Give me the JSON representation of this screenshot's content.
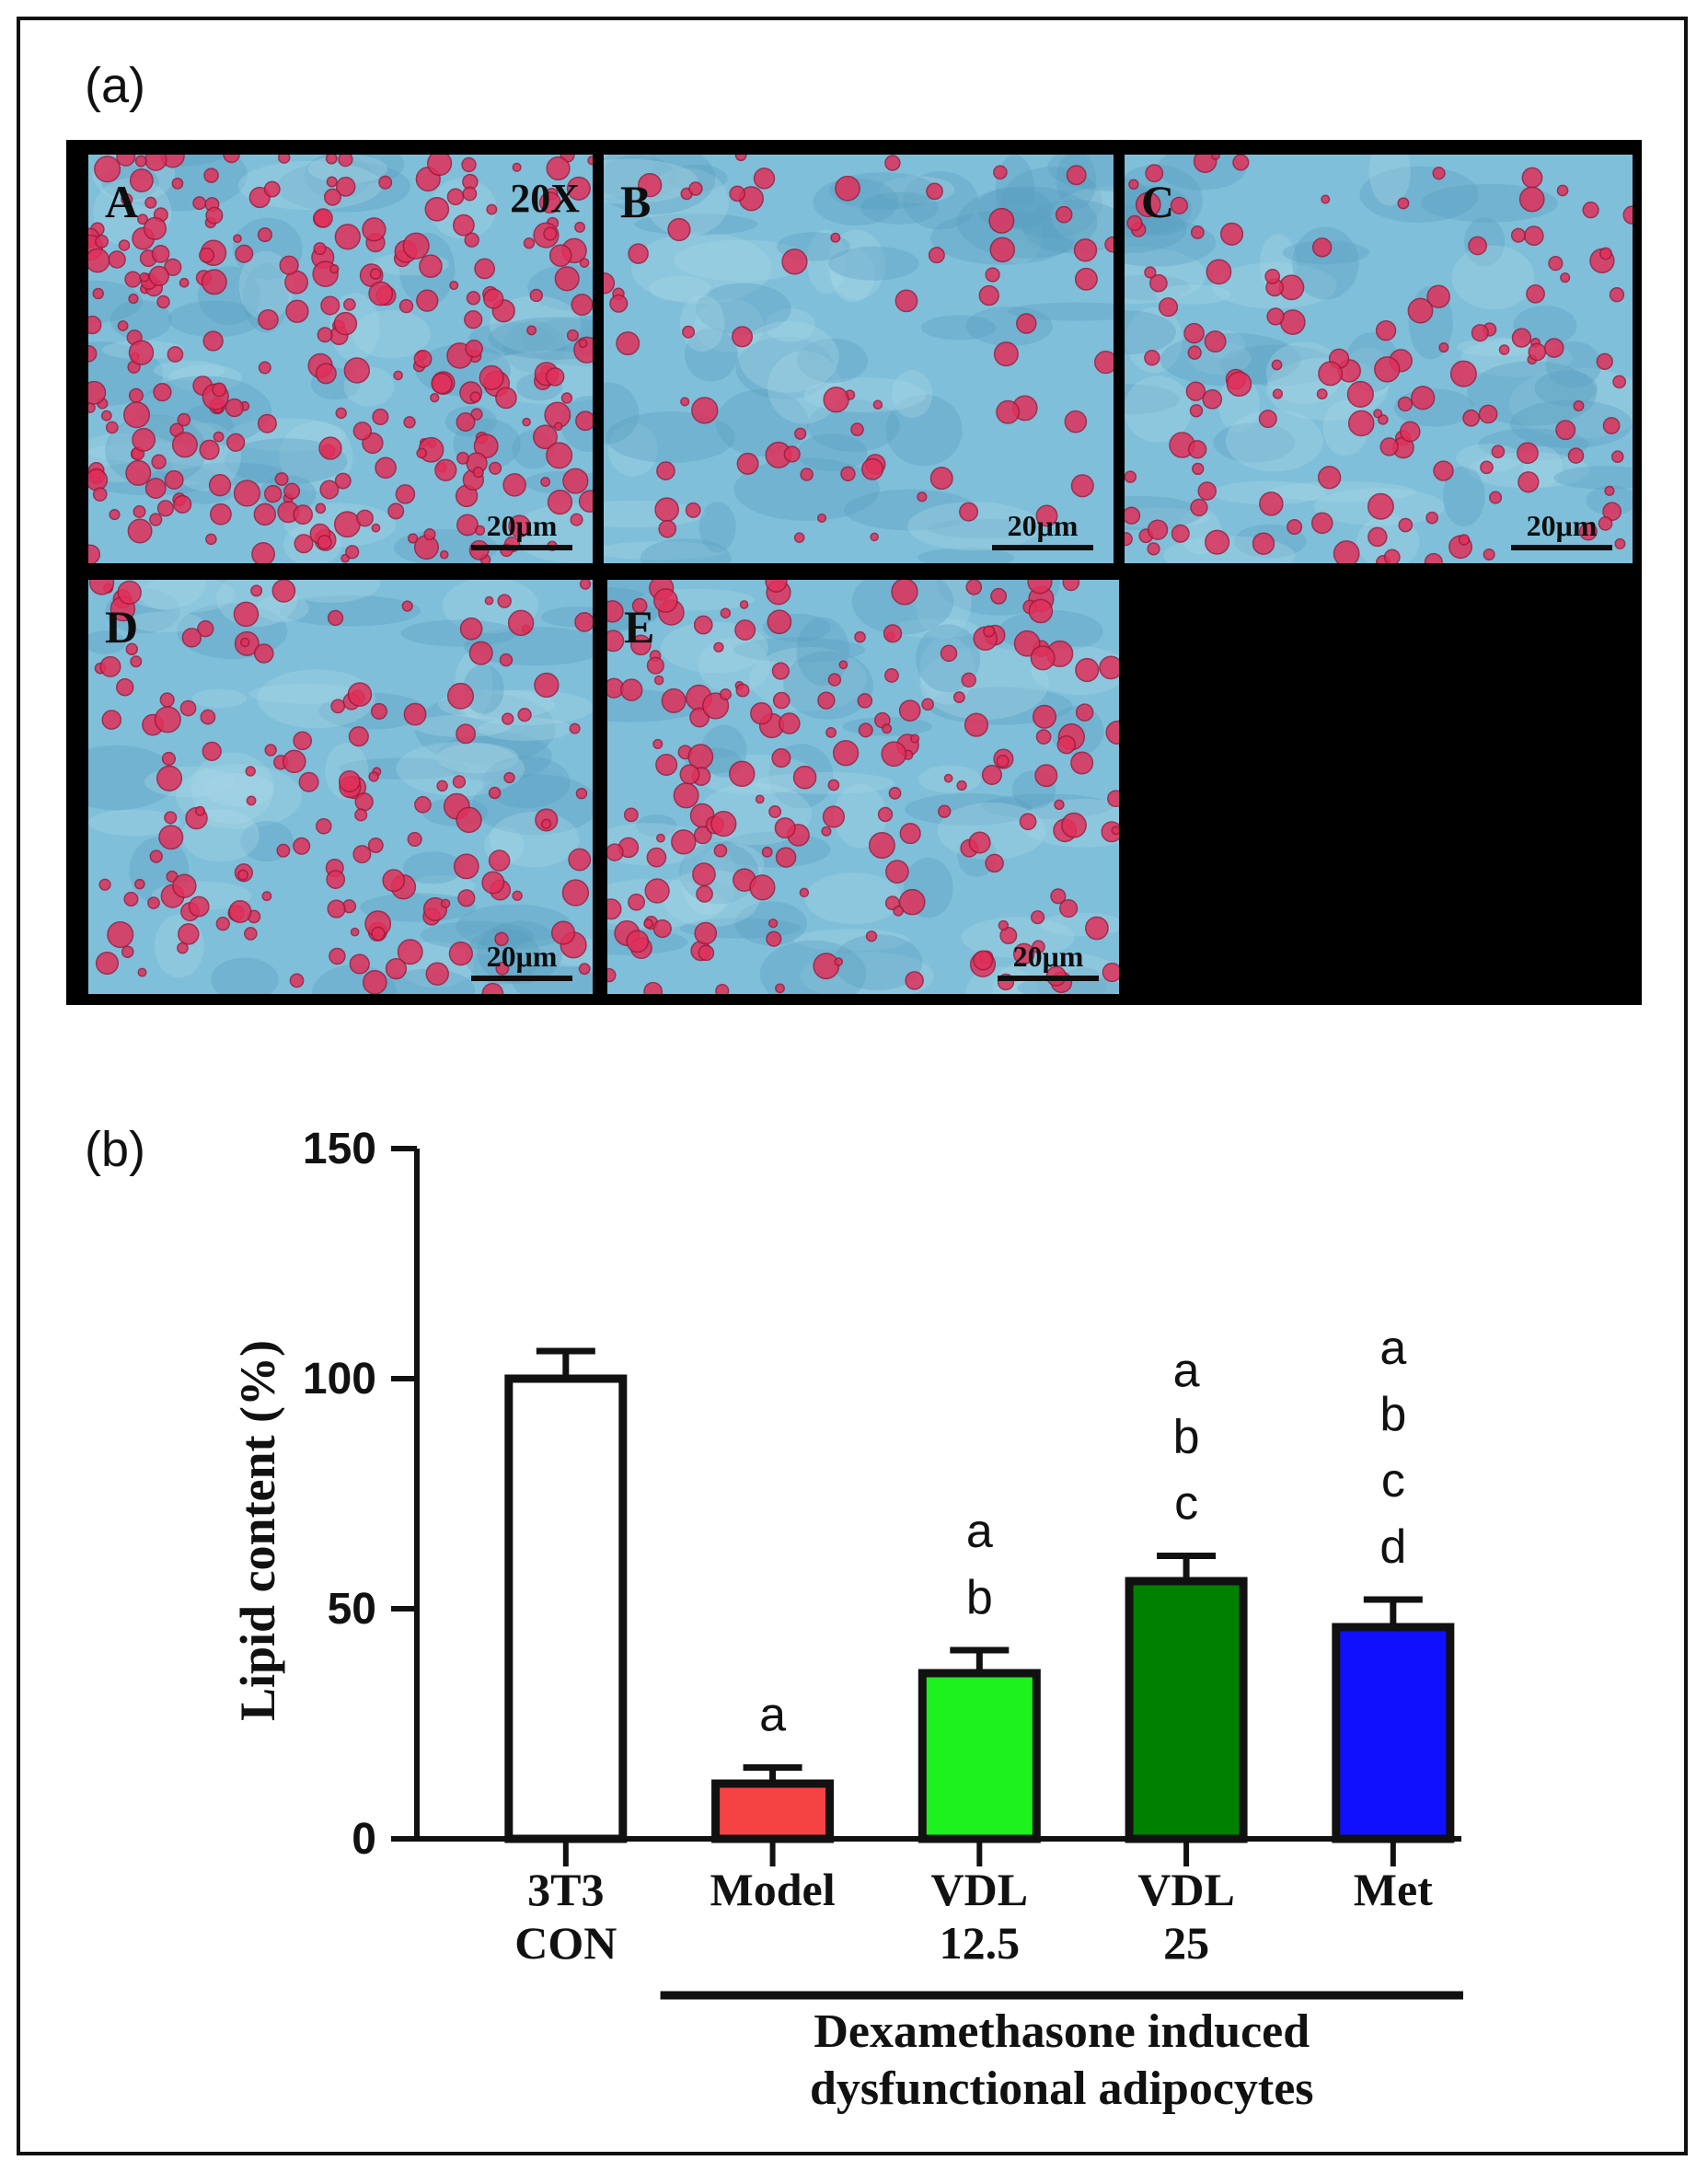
{
  "figure": {
    "panel_a_label": "(a)",
    "panel_b_label": "(b)"
  },
  "micrographs": {
    "magnification": "20X",
    "scale_label": "20μm",
    "tiles": [
      {
        "letter": "A",
        "stain_level": 0.85
      },
      {
        "letter": "B",
        "stain_level": 0.2
      },
      {
        "letter": "C",
        "stain_level": 0.4
      },
      {
        "letter": "D",
        "stain_level": 0.45
      },
      {
        "letter": "E",
        "stain_level": 0.55
      }
    ],
    "colors": {
      "background": "#7fbfd9",
      "lipid": "#e0305a",
      "border": "#000000"
    }
  },
  "chart_data": {
    "type": "bar",
    "ylabel": "Lipid content (%)",
    "ylim": [
      0,
      150
    ],
    "yticks": [
      0,
      50,
      100,
      150
    ],
    "categories": [
      {
        "lines": [
          "3T3",
          "CON"
        ]
      },
      {
        "lines": [
          "Model"
        ]
      },
      {
        "lines": [
          "VDL",
          "12.5"
        ]
      },
      {
        "lines": [
          "VDL",
          "25"
        ]
      },
      {
        "lines": [
          "Met"
        ]
      }
    ],
    "values": [
      100,
      12,
      36,
      56,
      46
    ],
    "errors": [
      6,
      3.5,
      5,
      5.5,
      6
    ],
    "colors": [
      "#ffffff",
      "#f54242",
      "#1ef21e",
      "#008000",
      "#1010ff"
    ],
    "significance": [
      [],
      [
        "a"
      ],
      [
        "a",
        "b"
      ],
      [
        "a",
        "b",
        "c"
      ],
      [
        "a",
        "b",
        "c",
        "d"
      ]
    ],
    "group_label": [
      "Dexamethasone induced",
      "dysfunctional adipocytes"
    ],
    "group_span": [
      1,
      4
    ]
  }
}
